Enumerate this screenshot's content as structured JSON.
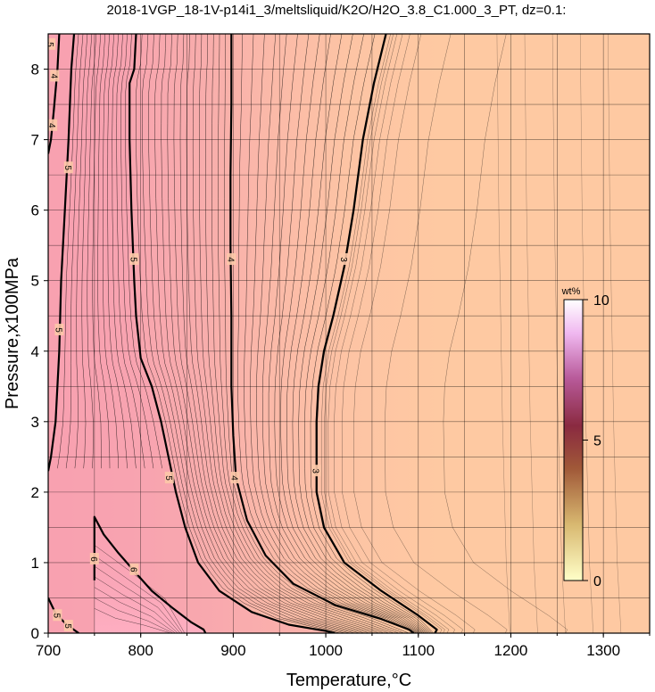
{
  "chart_data": {
    "type": "heatmap",
    "title": "2018-1VGP_18-1V-p14i1_3/meltsliquid/K2O/H2O_3.8_C1.000_3_PT, dz=0.1:",
    "xlabel": "Temperature,°C",
    "ylabel": "Pressure,x100MPa",
    "xlim": [
      700,
      1350
    ],
    "ylim": [
      0,
      8.5
    ],
    "x_ticks": [
      "700",
      "800",
      "900",
      "1000",
      "1100",
      "1200",
      "1300"
    ],
    "y_ticks": [
      "0",
      "1",
      "2",
      "3",
      "4",
      "5",
      "6",
      "7",
      "8"
    ],
    "grid": true,
    "colorbar": {
      "label": "wt%",
      "range": [
        0,
        10
      ],
      "tick_labels": [
        "0",
        "5",
        "10"
      ],
      "colors": [
        "#ffffcc",
        "#c8a050",
        "#8a2030",
        "#d080d0",
        "#ffffff"
      ]
    },
    "bold_contours": [
      {
        "level": 3,
        "label": "3",
        "points": [
          [
            1065,
            8.5
          ],
          [
            1052,
            7.8
          ],
          [
            1040,
            7.0
          ],
          [
            1030,
            6.0
          ],
          [
            1020,
            5.2
          ],
          [
            1008,
            4.5
          ],
          [
            998,
            4.0
          ],
          [
            992,
            3.5
          ],
          [
            990,
            3.0
          ],
          [
            990,
            2.5
          ],
          [
            990,
            2.0
          ],
          [
            998,
            1.5
          ],
          [
            1020,
            1.0
          ],
          [
            1060,
            0.6
          ],
          [
            1100,
            0.25
          ],
          [
            1120,
            0.05
          ],
          [
            1118,
            0.0
          ]
        ]
      },
      {
        "level": 4,
        "label": "4",
        "points": [
          [
            898,
            8.5
          ],
          [
            898,
            7.5
          ],
          [
            897,
            6.5
          ],
          [
            897,
            5.5
          ],
          [
            898,
            4.5
          ],
          [
            898,
            3.5
          ],
          [
            900,
            2.8
          ],
          [
            903,
            2.2
          ],
          [
            915,
            1.6
          ],
          [
            935,
            1.1
          ],
          [
            965,
            0.7
          ],
          [
            1010,
            0.4
          ],
          [
            1060,
            0.2
          ],
          [
            1090,
            0.05
          ],
          [
            1095,
            0.0
          ]
        ]
      },
      {
        "level": 5,
        "label": "5",
        "points": [
          [
            795,
            8.5
          ],
          [
            793,
            8.0
          ],
          [
            788,
            7.8
          ],
          [
            788,
            7.0
          ],
          [
            790,
            6.0
          ],
          [
            793,
            5.0
          ],
          [
            795,
            4.5
          ],
          [
            800,
            3.9
          ],
          [
            812,
            3.5
          ],
          [
            822,
            3.0
          ],
          [
            830,
            2.5
          ],
          [
            838,
            2.0
          ],
          [
            848,
            1.5
          ],
          [
            862,
            1.0
          ],
          [
            885,
            0.6
          ],
          [
            920,
            0.3
          ],
          [
            960,
            0.12
          ],
          [
            1000,
            0.03
          ],
          [
            1010,
            0.0
          ]
        ]
      },
      {
        "level": 5,
        "label": "5",
        "points": [
          [
            728,
            8.5
          ],
          [
            725,
            8.0
          ],
          [
            722,
            7.0
          ],
          [
            718,
            6.0
          ],
          [
            714,
            5.0
          ],
          [
            712,
            4.0
          ],
          [
            708,
            3.0
          ],
          [
            703,
            2.5
          ],
          [
            700,
            2.3
          ]
        ]
      },
      {
        "level": 6,
        "label": "6",
        "points": [
          [
            750,
            0.75
          ],
          [
            750,
            1.3
          ],
          [
            750,
            1.65
          ],
          [
            760,
            1.4
          ],
          [
            775,
            1.15
          ],
          [
            795,
            0.85
          ],
          [
            812,
            0.6
          ],
          [
            835,
            0.35
          ],
          [
            855,
            0.15
          ],
          [
            868,
            0.05
          ],
          [
            870,
            0.0
          ]
        ]
      },
      {
        "level": 4,
        "label": "4",
        "points": [
          [
            712,
            8.5
          ],
          [
            710,
            8.0
          ],
          [
            706,
            7.4
          ],
          [
            703,
            7.0
          ],
          [
            700,
            6.8
          ]
        ]
      },
      {
        "level": 5,
        "label": "5",
        "points": [
          [
            700,
            0.5
          ],
          [
            708,
            0.28
          ],
          [
            720,
            0.12
          ],
          [
            733,
            0.0
          ]
        ]
      }
    ]
  },
  "contour_labels": [
    {
      "text": "3",
      "t": 1020,
      "p": 5.3
    },
    {
      "text": "3",
      "t": 990,
      "p": 2.3
    },
    {
      "text": "4",
      "t": 898,
      "p": 5.3
    },
    {
      "text": "4",
      "t": 902,
      "p": 2.2
    },
    {
      "text": "5",
      "t": 793,
      "p": 5.3
    },
    {
      "text": "5",
      "t": 831,
      "p": 2.2
    },
    {
      "text": "5",
      "t": 722,
      "p": 6.6
    },
    {
      "text": "5",
      "t": 712,
      "p": 4.3
    },
    {
      "text": "4",
      "t": 705,
      "p": 7.2
    },
    {
      "text": "4",
      "t": 707,
      "p": 7.9
    },
    {
      "text": "6",
      "t": 750,
      "p": 1.05
    },
    {
      "text": "6",
      "t": 793,
      "p": 0.9
    },
    {
      "text": "5",
      "t": 710,
      "p": 0.25
    },
    {
      "text": "5",
      "t": 722,
      "p": 0.1
    },
    {
      "text": "5",
      "t": 703,
      "p": 8.35
    }
  ]
}
